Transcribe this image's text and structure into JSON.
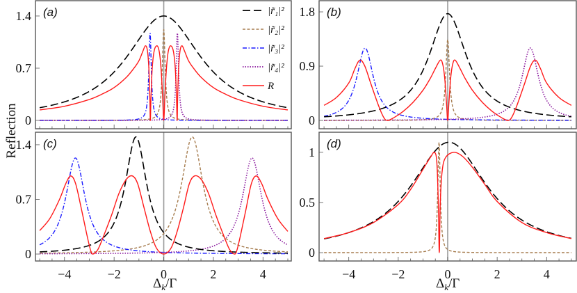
{
  "ylabel": "Reflection",
  "xlabel": {
    "main": "Δ",
    "sub": "k",
    "rest": "/Γ"
  },
  "legend": [
    {
      "label": "|r̃₁|²",
      "color": "#000000",
      "style": "longdash"
    },
    {
      "label": "|r̃₂|²",
      "color": "#a67c4e",
      "style": "shortdash"
    },
    {
      "label": "|r̃₃|²",
      "color": "#1a1aff",
      "style": "dashdot"
    },
    {
      "label": "|r̃₄|²",
      "color": "#8b1a9e",
      "style": "dot"
    },
    {
      "label": "R",
      "color": "#ff1a1a",
      "style": "solid"
    }
  ],
  "chart_data": [
    {
      "panel": "(a)",
      "type": "line",
      "xlim": [
        -5.17,
        5.14
      ],
      "ylim": [
        -0.112,
        1.605
      ],
      "yticks": [
        0,
        0.7,
        1.4
      ],
      "ytick_labels": [
        "0",
        "0.7",
        "1.4"
      ],
      "xticks": [
        -4,
        -2,
        0,
        2,
        4
      ],
      "xtick_labels": [],
      "series": [
        {
          "name": "|r̃₁|²",
          "lorentzian": {
            "center": 0,
            "height": 1.4,
            "width": 1.86
          }
        },
        {
          "name": "|r̃₂|²",
          "lorentzian": {
            "center": 0,
            "height": 1.22,
            "width": 0.07
          }
        },
        {
          "name": "|r̃₃|²",
          "lorentzian": {
            "center": -0.55,
            "height": 1.17,
            "width": 0.06
          }
        },
        {
          "name": "|r̃₄|²",
          "lorentzian": {
            "center": 0.55,
            "height": 1.17,
            "width": 0.06
          }
        },
        {
          "name": "R",
          "points": [
            [
              -5,
              0.14
            ],
            [
              -4,
              0.19
            ],
            [
              -3,
              0.28
            ],
            [
              -2.5,
              0.35
            ],
            [
              -2,
              0.44
            ],
            [
              -1.5,
              0.58
            ],
            [
              -1.2,
              0.7
            ],
            [
              -1,
              0.8
            ],
            [
              -0.85,
              0.92
            ],
            [
              -0.74,
              1.0
            ],
            [
              -0.66,
              0.94
            ],
            [
              -0.6,
              0.7
            ],
            [
              -0.56,
              0.3
            ],
            [
              -0.54,
              0
            ],
            [
              -0.51,
              0.35
            ],
            [
              -0.46,
              0.72
            ],
            [
              -0.38,
              0.94
            ],
            [
              -0.27,
              1.0
            ],
            [
              -0.18,
              0.92
            ],
            [
              -0.11,
              0.7
            ],
            [
              -0.05,
              0.35
            ],
            [
              0,
              0
            ],
            [
              0.05,
              0.35
            ],
            [
              0.11,
              0.7
            ],
            [
              0.18,
              0.92
            ],
            [
              0.27,
              1.0
            ],
            [
              0.38,
              0.94
            ],
            [
              0.46,
              0.72
            ],
            [
              0.51,
              0.35
            ],
            [
              0.54,
              0
            ],
            [
              0.56,
              0.3
            ],
            [
              0.6,
              0.7
            ],
            [
              0.66,
              0.94
            ],
            [
              0.74,
              1.0
            ],
            [
              0.85,
              0.92
            ],
            [
              1,
              0.8
            ],
            [
              1.2,
              0.7
            ],
            [
              1.5,
              0.58
            ],
            [
              2,
              0.44
            ],
            [
              2.5,
              0.35
            ],
            [
              3,
              0.28
            ],
            [
              4,
              0.19
            ],
            [
              5,
              0.14
            ]
          ]
        }
      ]
    },
    {
      "panel": "(b)",
      "type": "line",
      "xlim": [
        -5.2,
        5.2
      ],
      "ylim": [
        -0.138,
        1.985
      ],
      "yticks": [
        0,
        0.9,
        1.8
      ],
      "ytick_labels": [
        "0",
        "0.9",
        "1.8"
      ],
      "xticks": [
        -4,
        -2,
        0,
        2,
        4
      ],
      "xtick_labels": [],
      "series": [
        {
          "name": "|r̃₁|²",
          "lorentzian": {
            "center": 0,
            "height": 1.77,
            "width": 0.94
          }
        },
        {
          "name": "|r̃₂|²",
          "lorentzian": {
            "center": 0,
            "height": 1.34,
            "width": 0.09
          }
        },
        {
          "name": "|r̃₃|²",
          "lorentzian": {
            "center": -3.34,
            "height": 1.2,
            "width": 0.41
          }
        },
        {
          "name": "|r̃₄|²",
          "lorentzian": {
            "center": 3.34,
            "height": 1.2,
            "width": 0.41
          }
        },
        {
          "name": "R",
          "points": [
            [
              -5,
              0.25
            ],
            [
              -4.5,
              0.38
            ],
            [
              -4,
              0.62
            ],
            [
              -3.75,
              0.86
            ],
            [
              -3.55,
              1.0
            ],
            [
              -3.35,
              0.9
            ],
            [
              -3.1,
              0.6
            ],
            [
              -2.8,
              0.25
            ],
            [
              -2.6,
              0.06
            ],
            [
              -2.45,
              0
            ],
            [
              -2.2,
              0.04
            ],
            [
              -1.8,
              0.15
            ],
            [
              -1.4,
              0.3
            ],
            [
              -1,
              0.5
            ],
            [
              -0.7,
              0.7
            ],
            [
              -0.5,
              0.86
            ],
            [
              -0.3,
              1.0
            ],
            [
              -0.2,
              0.93
            ],
            [
              -0.12,
              0.7
            ],
            [
              -0.05,
              0.3
            ],
            [
              0,
              0
            ],
            [
              0.05,
              0.3
            ],
            [
              0.12,
              0.7
            ],
            [
              0.2,
              0.93
            ],
            [
              0.3,
              1.0
            ],
            [
              0.5,
              0.86
            ],
            [
              0.7,
              0.7
            ],
            [
              1,
              0.5
            ],
            [
              1.4,
              0.3
            ],
            [
              1.8,
              0.15
            ],
            [
              2.2,
              0.04
            ],
            [
              2.45,
              0
            ],
            [
              2.6,
              0.06
            ],
            [
              2.8,
              0.25
            ],
            [
              3.1,
              0.6
            ],
            [
              3.35,
              0.9
            ],
            [
              3.55,
              1.0
            ],
            [
              3.75,
              0.86
            ],
            [
              4,
              0.62
            ],
            [
              4.5,
              0.38
            ],
            [
              5,
              0.25
            ]
          ]
        }
      ]
    },
    {
      "panel": "(c)",
      "type": "line",
      "xlim": [
        -5.17,
        5.14
      ],
      "ylim": [
        -0.089,
        1.56
      ],
      "yticks": [
        0,
        0.7,
        1.4
      ],
      "ytick_labels": [
        "0",
        "0.7",
        "1.4"
      ],
      "xticks": [
        -4,
        -2,
        0,
        2,
        4
      ],
      "xtick_labels": [
        "−4",
        "−2",
        "0",
        "2",
        "4"
      ],
      "series": [
        {
          "name": "|r̃₁|²",
          "lorentzian": {
            "center": -1.12,
            "height": 1.5,
            "width": 0.53
          }
        },
        {
          "name": "|r̃₂|²",
          "lorentzian": {
            "center": 1.15,
            "height": 1.5,
            "width": 0.53
          }
        },
        {
          "name": "|r̃₃|²",
          "lorentzian": {
            "center": -3.56,
            "height": 1.23,
            "width": 0.47
          }
        },
        {
          "name": "|r̃₄|²",
          "lorentzian": {
            "center": 3.56,
            "height": 1.23,
            "width": 0.47
          }
        },
        {
          "name": "R",
          "points": [
            [
              -5,
              0.3
            ],
            [
              -4.6,
              0.45
            ],
            [
              -4.2,
              0.7
            ],
            [
              -3.95,
              0.9
            ],
            [
              -3.75,
              1.0
            ],
            [
              -3.55,
              0.9
            ],
            [
              -3.3,
              0.55
            ],
            [
              -3.1,
              0.25
            ],
            [
              -2.95,
              0.05
            ],
            [
              -2.85,
              0
            ],
            [
              -2.65,
              0.06
            ],
            [
              -2.4,
              0.25
            ],
            [
              -2.1,
              0.5
            ],
            [
              -1.8,
              0.78
            ],
            [
              -1.5,
              0.96
            ],
            [
              -1.26,
              1.0
            ],
            [
              -1.05,
              0.9
            ],
            [
              -0.8,
              0.6
            ],
            [
              -0.55,
              0.3
            ],
            [
              -0.3,
              0.08
            ],
            [
              0,
              0
            ],
            [
              0.3,
              0.08
            ],
            [
              0.55,
              0.3
            ],
            [
              0.8,
              0.6
            ],
            [
              1.03,
              0.9
            ],
            [
              1.24,
              1.0
            ],
            [
              1.5,
              0.96
            ],
            [
              1.8,
              0.78
            ],
            [
              2.1,
              0.5
            ],
            [
              2.4,
              0.25
            ],
            [
              2.65,
              0.06
            ],
            [
              2.85,
              0
            ],
            [
              2.95,
              0.05
            ],
            [
              3.1,
              0.25
            ],
            [
              3.3,
              0.55
            ],
            [
              3.53,
              0.9
            ],
            [
              3.73,
              1.0
            ],
            [
              3.95,
              0.9
            ],
            [
              4.2,
              0.7
            ],
            [
              4.6,
              0.45
            ],
            [
              5,
              0.29
            ]
          ]
        }
      ]
    },
    {
      "panel": "(d)",
      "type": "line",
      "xlim": [
        -5.2,
        5.2
      ],
      "ylim": [
        -0.083,
        1.2
      ],
      "yticks": [
        0,
        0.5,
        1
      ],
      "ytick_labels": [
        "0",
        "0.5",
        "1"
      ],
      "xticks": [
        -4,
        -2,
        0,
        2,
        4
      ],
      "xtick_labels": [
        "−4",
        "−2",
        "0",
        "2",
        "4"
      ],
      "series": [
        {
          "name": "|r̃₁|²",
          "lorentzian": {
            "center": 0.05,
            "height": 1.1,
            "width": 1.91
          }
        },
        {
          "name": "|r̃₂|²",
          "lorentzian": {
            "center": -0.35,
            "height": 1.1,
            "width": 0.06
          }
        },
        {
          "name": "R",
          "points": [
            [
              -5,
              0.14
            ],
            [
              -4,
              0.2
            ],
            [
              -3,
              0.3
            ],
            [
              -2,
              0.48
            ],
            [
              -1.5,
              0.63
            ],
            [
              -1,
              0.83
            ],
            [
              -0.7,
              0.95
            ],
            [
              -0.53,
              1.0
            ],
            [
              -0.44,
              0.9
            ],
            [
              -0.38,
              0.5
            ],
            [
              -0.34,
              0
            ],
            [
              -0.3,
              0.5
            ],
            [
              -0.22,
              0.82
            ],
            [
              -0.08,
              0.95
            ],
            [
              0.25,
              1.0
            ],
            [
              0.6,
              0.96
            ],
            [
              1,
              0.85
            ],
            [
              1.5,
              0.68
            ],
            [
              2,
              0.51
            ],
            [
              3,
              0.3
            ],
            [
              4,
              0.2
            ],
            [
              5,
              0.14
            ]
          ]
        }
      ]
    }
  ]
}
